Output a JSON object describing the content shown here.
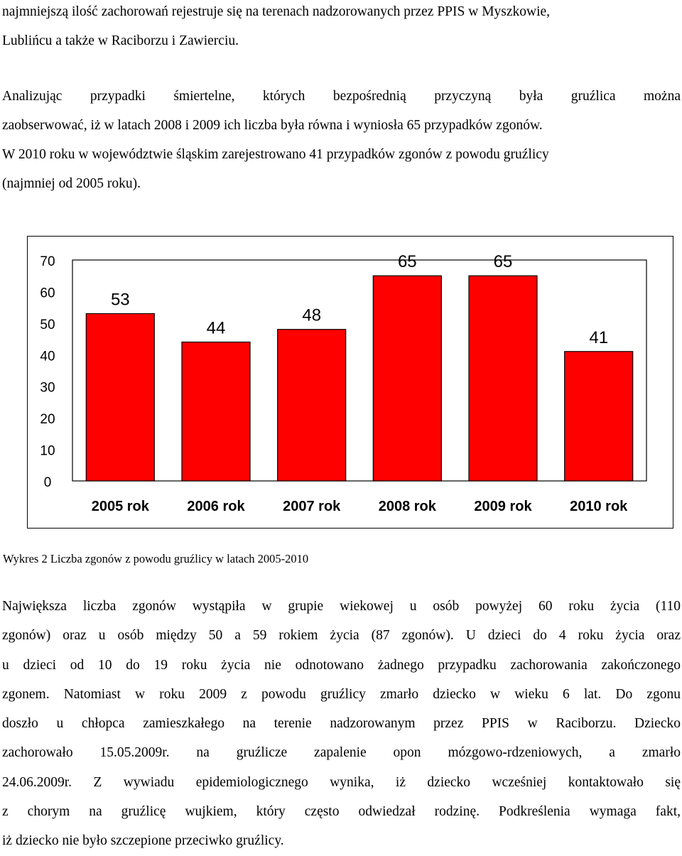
{
  "intro_paragraph": {
    "lines": [
      "najmniejszą ilość zachorowań rejestruje się na  terenach nadzorowanych przez PPIS w Myszkowie,",
      "Lublińcu a także w Raciborzu i Zawierciu."
    ]
  },
  "analysis_paragraph": {
    "lines": [
      "Analizując przypadki śmiertelne, których bezpośrednią przyczyną była gruźlica można",
      "zaobserwować, iż w latach 2008 i 2009 ich liczba była równa i wyniosła 65 przypadków zgonów.",
      "W 2010 roku w województwie śląskim zarejestrowano 41 przypadków zgonów  z powodu gruźlicy",
      "(najmniej od 2005 roku)."
    ]
  },
  "chart_data": {
    "type": "bar",
    "categories": [
      "2005 rok",
      "2006 rok",
      "2007 rok",
      "2008 rok",
      "2009 rok",
      "2010 rok"
    ],
    "values": [
      53,
      44,
      48,
      65,
      65,
      41
    ],
    "value_labels": [
      "53",
      "44",
      "48",
      "65",
      "65",
      "41"
    ],
    "yticks": [
      "0",
      "10",
      "20",
      "30",
      "40",
      "50",
      "60",
      "70"
    ],
    "ylim": [
      0,
      70
    ],
    "bar_color": "#ff0000",
    "grid": false,
    "legend": "none"
  },
  "caption": {
    "text": "Wykres 2 Liczba zgonów z powodu gruźlicy w latach 2005-2010"
  },
  "bottom_paragraph": {
    "lines": [
      "Największa liczba zgonów wystąpiła w grupie wiekowej u osób powyżej 60 roku życia (110",
      "zgonów) oraz u osób  między 50 a 59 rokiem życia (87 zgonów). U dzieci do 4 roku życia oraz",
      "u dzieci od 10 do 19 roku życia nie odnotowano żadnego przypadku zachorowania zakończonego",
      "zgonem. Natomiast w roku 2009 z powodu gruźlicy zmarło dziecko w wieku 6  lat. Do zgonu",
      "doszło u chłopca zamieszkałego na terenie nadzorowanym przez PPIS w Raciborzu. Dziecko",
      "zachorowało 15.05.2009r. na gruźlicze zapalenie opon mózgowo-rdzeniowych, a zmarło",
      "24.06.2009r. Z wywiadu epidemiologicznego wynika, iż dziecko wcześniej kontaktowało się",
      "z chorym na gruźlicę wujkiem, który często odwiedzał rodzinę. Podkreślenia wymaga fakt,",
      " iż dziecko nie było szczepione przeciwko gruźlicy."
    ]
  }
}
